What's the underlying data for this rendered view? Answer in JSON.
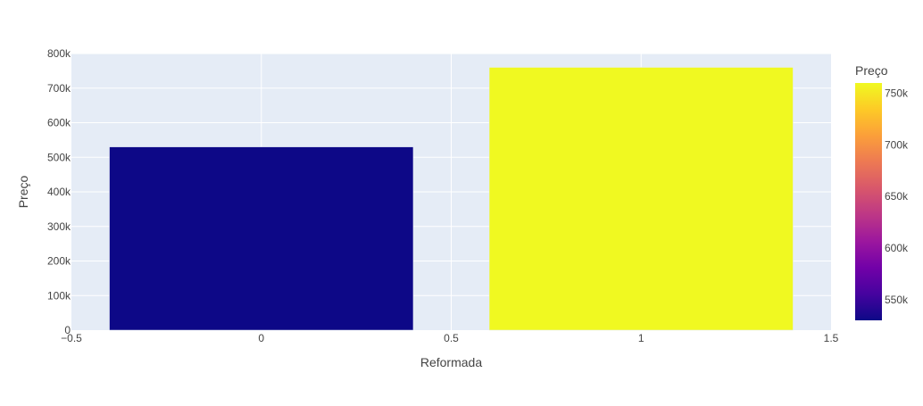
{
  "chart_data": {
    "type": "bar",
    "xlabel": "Reformada",
    "ylabel": "Preço",
    "x": [
      0,
      1
    ],
    "values": [
      530000,
      760000
    ],
    "xlim": [
      -0.5,
      1.5
    ],
    "ylim": [
      0,
      800000
    ],
    "x_ticks": [
      -0.5,
      0,
      0.5,
      1,
      1.5
    ],
    "x_tick_labels": [
      "−0.5",
      "0",
      "0.5",
      "1",
      "1.5"
    ],
    "y_ticks": [
      0,
      100000,
      200000,
      300000,
      400000,
      500000,
      600000,
      700000,
      800000
    ],
    "y_tick_labels": [
      "0",
      "100k",
      "200k",
      "300k",
      "400k",
      "500k",
      "600k",
      "700k",
      "800k"
    ],
    "grid": true,
    "bar_colors": [
      "#0d0887",
      "#f0f921"
    ],
    "colorbar": {
      "title": "Preço",
      "range": [
        530000,
        760000
      ],
      "ticks": [
        550000,
        600000,
        650000,
        700000,
        750000
      ],
      "tick_labels": [
        "550k",
        "600k",
        "650k",
        "700k",
        "750k"
      ],
      "colorscale": [
        "#0d0887",
        "#46039f",
        "#7201a8",
        "#9c179e",
        "#bd3786",
        "#d8576b",
        "#ed7953",
        "#fb9f3a",
        "#fdca26",
        "#f0f921"
      ]
    },
    "colors": {
      "plot_bg": "#e5ecf6",
      "grid": "#ffffff",
      "text": "#444444"
    }
  }
}
